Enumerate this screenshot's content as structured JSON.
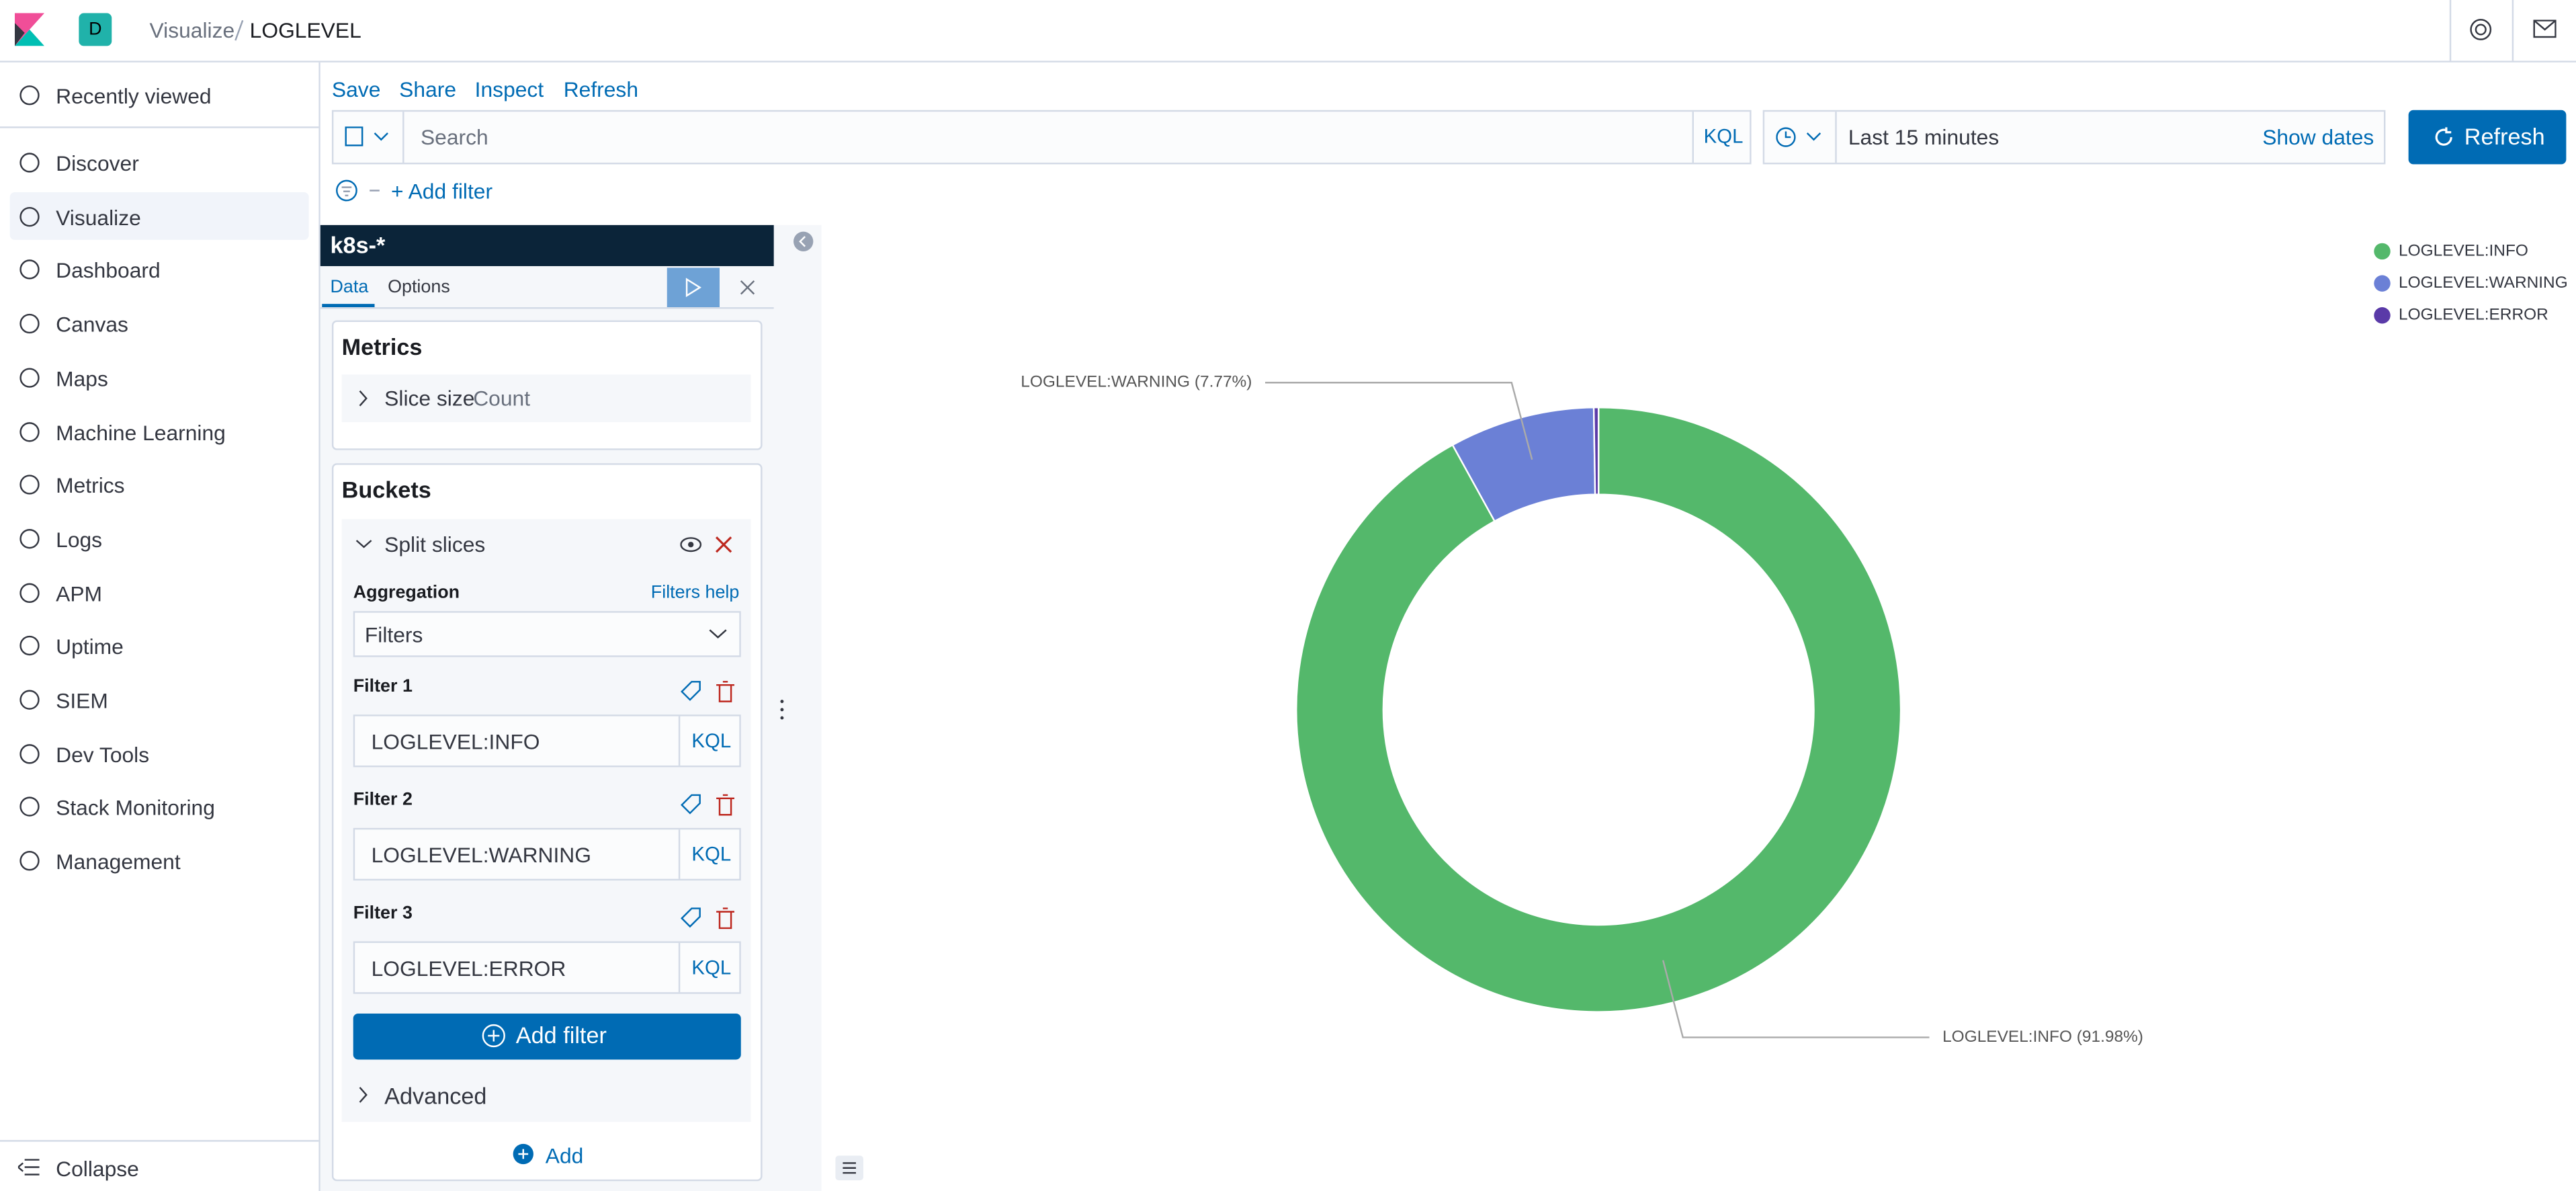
{
  "header": {
    "space": "D",
    "breadcrumbs": [
      "Visualize",
      "LOGLEVEL"
    ]
  },
  "nav": {
    "items": [
      "Recently viewed",
      "Discover",
      "Visualize",
      "Dashboard",
      "Canvas",
      "Maps",
      "Machine Learning",
      "Metrics",
      "Logs",
      "APM",
      "Uptime",
      "SIEM",
      "Dev Tools",
      "Stack Monitoring",
      "Management"
    ],
    "collapse": "Collapse"
  },
  "toolbar": {
    "menu": [
      "Save",
      "Share",
      "Inspect",
      "Refresh"
    ],
    "search_placeholder": "Search",
    "query_language": "KQL",
    "time_range": "Last 15 minutes",
    "show_dates": "Show dates",
    "refresh_button": "Refresh",
    "add_filter": "+ Add filter"
  },
  "editor": {
    "index_pattern": "k8s-*",
    "tabs": [
      "Data",
      "Options"
    ],
    "metrics_title": "Metrics",
    "metric": {
      "label": "Slice size",
      "value": "Count"
    },
    "buckets_title": "Buckets",
    "bucket": "Split slices",
    "aggregation_label": "Aggregation",
    "filters_help": "Filters help",
    "aggregation": "Filters",
    "filters": [
      {
        "label": "Filter 1",
        "query": "LOGLEVEL:INFO",
        "language": "KQL"
      },
      {
        "label": "Filter 2",
        "query": "LOGLEVEL:WARNING",
        "language": "KQL"
      },
      {
        "label": "Filter 3",
        "query": "LOGLEVEL:ERROR",
        "language": "KQL"
      }
    ],
    "add_filter": "Add filter",
    "advanced": "Advanced",
    "add": "Add"
  },
  "chart_data": {
    "type": "pie",
    "donut": true,
    "categories": [
      "LOGLEVEL:INFO",
      "LOGLEVEL:WARNING",
      "LOGLEVEL:ERROR"
    ],
    "values": [
      91.98,
      7.77,
      0.25
    ],
    "value_labels": [
      "LOGLEVEL:INFO (91.98%)",
      "LOGLEVEL:WARNING (7.77%)",
      null
    ],
    "colors": [
      "#54b86b",
      "#6b80d6",
      "#5a3aa8"
    ],
    "legend": "top-right"
  }
}
